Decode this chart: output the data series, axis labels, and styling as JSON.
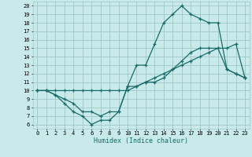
{
  "xlabel": "Humidex (Indice chaleur)",
  "bg_color": "#c8eaea",
  "grid_color": "#a0c8c8",
  "line_color": "#1a6b6b",
  "xlim": [
    -0.5,
    23.5
  ],
  "ylim": [
    5.5,
    20.5
  ],
  "xticks": [
    0,
    1,
    2,
    3,
    4,
    5,
    6,
    7,
    8,
    9,
    10,
    11,
    12,
    13,
    14,
    15,
    16,
    17,
    18,
    19,
    20,
    21,
    22,
    23
  ],
  "yticks": [
    6,
    7,
    8,
    9,
    10,
    11,
    12,
    13,
    14,
    15,
    16,
    17,
    18,
    19,
    20
  ],
  "line1_x": [
    0,
    1,
    2,
    3,
    4,
    5,
    6,
    7,
    8,
    9,
    10,
    11,
    12,
    13,
    14,
    15,
    16,
    17,
    18,
    19,
    20,
    21,
    22,
    23
  ],
  "line1_y": [
    10,
    10,
    9.5,
    8.5,
    7.5,
    7,
    6,
    6.5,
    6.5,
    7.5,
    10.5,
    13,
    13,
    15.5,
    18,
    19,
    20,
    19,
    18.5,
    18,
    18,
    12.5,
    12,
    11.5
  ],
  "line2_x": [
    0,
    1,
    2,
    3,
    4,
    5,
    6,
    7,
    8,
    9,
    10,
    11,
    12,
    13,
    14,
    15,
    16,
    17,
    18,
    19,
    20,
    21,
    22,
    23
  ],
  "line2_y": [
    10,
    10,
    10,
    10,
    10,
    10,
    10,
    10,
    10,
    10,
    10,
    10.5,
    11,
    11.5,
    12,
    12.5,
    13,
    13.5,
    14,
    14.5,
    15,
    15,
    15.5,
    11.5
  ],
  "line3_x": [
    0,
    1,
    2,
    3,
    4,
    5,
    6,
    7,
    8,
    9,
    10,
    11,
    12,
    13,
    14,
    15,
    16,
    17,
    18,
    19,
    20,
    21,
    22,
    23
  ],
  "line3_y": [
    10,
    10,
    9.5,
    9,
    8.5,
    7.5,
    7.5,
    7,
    7.5,
    7.5,
    10.5,
    10.5,
    11,
    11,
    11.5,
    12.5,
    13.5,
    14.5,
    15,
    15,
    15,
    12.5,
    12,
    11.5
  ]
}
